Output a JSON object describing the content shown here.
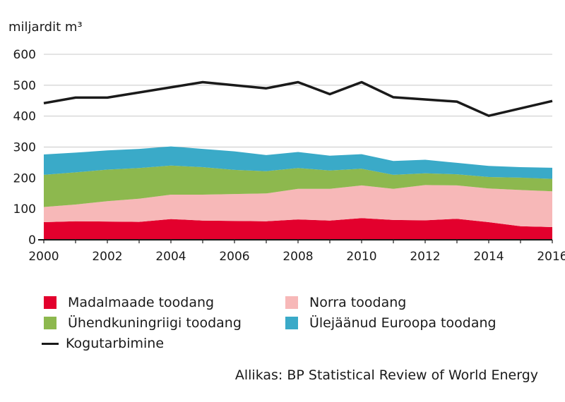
{
  "chart_data": {
    "type": "area",
    "stacked": true,
    "unit_label": "miljardit m³",
    "x": [
      2000,
      2001,
      2002,
      2003,
      2004,
      2005,
      2006,
      2007,
      2008,
      2009,
      2010,
      2011,
      2012,
      2013,
      2014,
      2015,
      2016
    ],
    "x_ticks": [
      "2000",
      "2002",
      "2004",
      "2006",
      "2008",
      "2010",
      "2012",
      "2014",
      "2016"
    ],
    "xlim": [
      2000,
      2016
    ],
    "ylim": [
      0,
      600
    ],
    "y_ticks": [
      "0",
      "100",
      "200",
      "300",
      "400",
      "500",
      "600"
    ],
    "grid": "horizontal",
    "legend_placement": "bottom",
    "series": [
      {
        "name": "Madalmaade toodang",
        "color": "#e3002d",
        "values": [
          57,
          60,
          59,
          58,
          67,
          62,
          61,
          60,
          66,
          62,
          70,
          64,
          63,
          68,
          57,
          44,
          41
        ]
      },
      {
        "name": "Norra toodang",
        "color": "#f7b8b8",
        "values": [
          49,
          54,
          66,
          75,
          79,
          84,
          87,
          90,
          99,
          103,
          106,
          101,
          114,
          108,
          109,
          117,
          116
        ]
      },
      {
        "name": "Ühendkuningriigi toodang",
        "color": "#8db84e",
        "values": [
          104,
          104,
          102,
          99,
          94,
          89,
          78,
          72,
          67,
          59,
          54,
          45,
          38,
          36,
          37,
          40,
          40
        ]
      },
      {
        "name": "Ülejäänud Euroopa toodang",
        "color": "#3aaac8",
        "values": [
          66,
          64,
          62,
          62,
          62,
          59,
          60,
          52,
          52,
          48,
          47,
          45,
          44,
          37,
          36,
          34,
          36
        ]
      }
    ],
    "line_series": {
      "name": "Kogutarbimine",
      "color": "#1a1a1a",
      "values": [
        442,
        460,
        460,
        null,
        null,
        510,
        null,
        490,
        510,
        471,
        510,
        461,
        null,
        447,
        401,
        null,
        449
      ]
    }
  },
  "source": "Allikas: BP Statistical Review of World Energy"
}
